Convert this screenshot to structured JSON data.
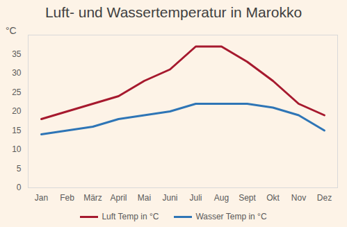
{
  "chart_data": {
    "type": "line",
    "title": "Luft- und Wassertemperatur in Marokko",
    "y_label": "°C",
    "categories": [
      "Jan",
      "Feb",
      "März",
      "April",
      "Mai",
      "Juni",
      "Juli",
      "Aug",
      "Sept",
      "Okt",
      "Nov",
      "Dez"
    ],
    "series": [
      {
        "name": "Luft Temp in °C",
        "color": "#a6192e",
        "values": [
          18,
          20,
          22,
          24,
          28,
          31,
          37,
          37,
          33,
          28,
          22,
          19
        ]
      },
      {
        "name": "Wasser Temp in °C",
        "color": "#2e75b6",
        "values": [
          14,
          15,
          16,
          18,
          19,
          20,
          22,
          22,
          22,
          21,
          19,
          15
        ]
      }
    ],
    "ylim": [
      0,
      40
    ],
    "yticks": [
      0,
      5,
      10,
      15,
      20,
      25,
      30,
      35
    ],
    "grid": false,
    "legend": "bottom"
  }
}
